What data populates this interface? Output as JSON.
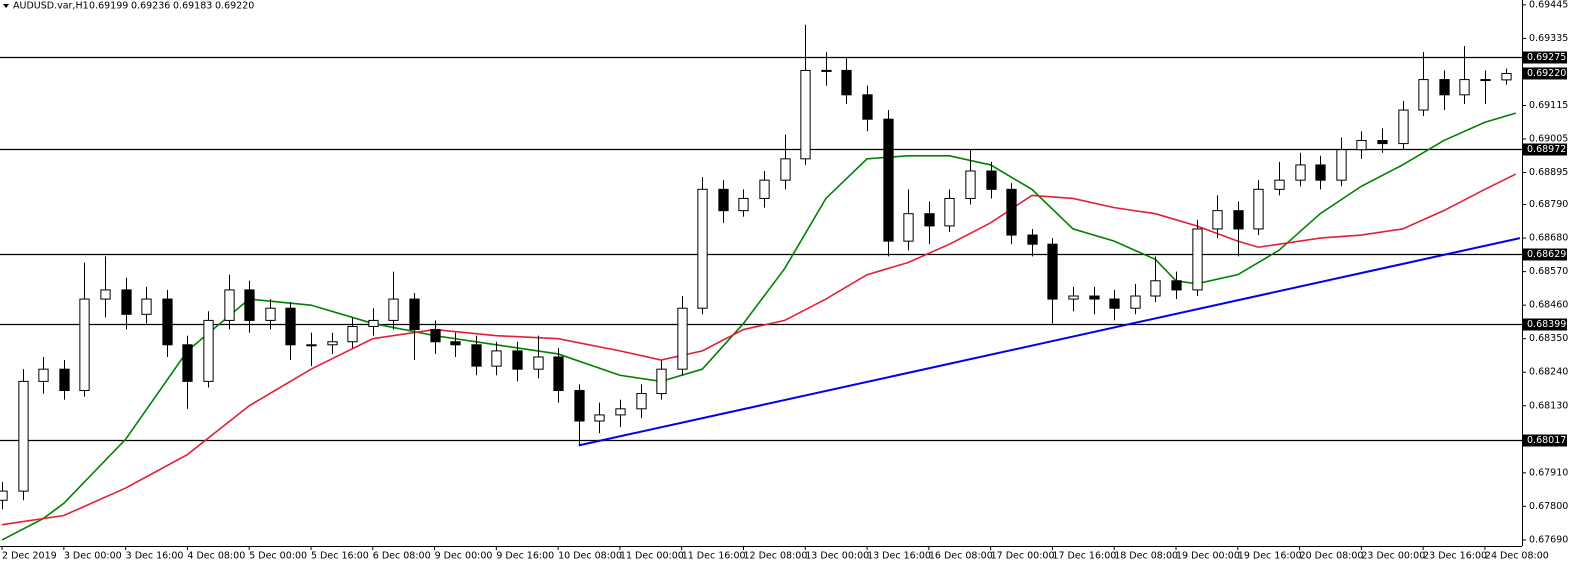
{
  "chart_data": {
    "type": "candlestick",
    "header": {
      "symbol": "AUDUSD.var,H1",
      "ohlc": [
        "0.69199",
        "0.69236",
        "0.69183",
        "0.69220"
      ]
    },
    "categories": [
      "2 Dec 2019",
      null,
      null,
      "3 Dec 00:00",
      null,
      null,
      "3 Dec 16:00",
      null,
      null,
      "4 Dec 08:00",
      null,
      null,
      "5 Dec 00:00",
      null,
      null,
      "5 Dec 16:00",
      null,
      null,
      "6 Dec 08:00",
      null,
      null,
      "9 Dec 00:00",
      null,
      null,
      "9 Dec 16:00",
      null,
      null,
      "10 Dec 08:00",
      null,
      null,
      "11 Dec 00:00",
      null,
      null,
      "11 Dec 16:00",
      null,
      null,
      "12 Dec 08:00",
      null,
      null,
      "13 Dec 00:00",
      null,
      null,
      "13 Dec 16:00",
      null,
      null,
      "16 Dec 08:00",
      null,
      null,
      "17 Dec 00:00",
      null,
      null,
      "17 Dec 16:00",
      null,
      null,
      "18 Dec 08:00",
      null,
      null,
      "19 Dec 00:00",
      null,
      null,
      "19 Dec 16:00",
      null,
      null,
      "20 Dec 08:00",
      null,
      null,
      "23 Dec 00:00",
      null,
      null,
      "23 Dec 16:00",
      null,
      null,
      "24 Dec 08:00",
      null
    ],
    "open": [
      0.6782,
      0.6785,
      0.6821,
      0.6825,
      0.6818,
      0.6848,
      0.6851,
      0.6843,
      0.6848,
      0.6833,
      0.6821,
      0.6841,
      0.6851,
      0.6841,
      0.6845,
      0.6833,
      0.6833,
      0.6834,
      0.6839,
      0.6841,
      0.6848,
      0.6838,
      0.6834,
      0.6833,
      0.6826,
      0.6831,
      0.6825,
      0.6829,
      0.6818,
      0.6808,
      0.681,
      0.6812,
      0.6817,
      0.6825,
      0.6845,
      0.6884,
      0.6877,
      0.6881,
      0.6887,
      0.6894,
      0.6923,
      0.6923,
      0.6915,
      0.6907,
      0.6867,
      0.6876,
      0.6872,
      0.6881,
      0.689,
      0.6884,
      0.6869,
      0.6866,
      0.6848,
      0.6849,
      0.6848,
      0.6845,
      0.6849,
      0.6854,
      0.6851,
      0.6871,
      0.6877,
      0.6871,
      0.6884,
      0.6887,
      0.6892,
      0.6887,
      0.6897,
      0.69,
      0.6899,
      0.691,
      0.692,
      0.6915,
      0.692,
      0.69199
    ],
    "high": [
      0.6788,
      0.6825,
      0.6829,
      0.6828,
      0.686,
      0.6862,
      0.6855,
      0.6852,
      0.6851,
      0.6836,
      0.6844,
      0.6856,
      0.6854,
      0.6848,
      0.6847,
      0.6837,
      0.6837,
      0.6842,
      0.6845,
      0.6857,
      0.685,
      0.6841,
      0.6837,
      0.6836,
      0.6834,
      0.6834,
      0.6836,
      0.6832,
      0.682,
      0.6814,
      0.6815,
      0.682,
      0.6828,
      0.6849,
      0.6888,
      0.6887,
      0.6884,
      0.689,
      0.6902,
      0.6938,
      0.6929,
      0.6927,
      0.6918,
      0.691,
      0.6884,
      0.688,
      0.6884,
      0.6897,
      0.6893,
      0.6886,
      0.6871,
      0.6868,
      0.6852,
      0.6852,
      0.6851,
      0.6853,
      0.6862,
      0.6857,
      0.6874,
      0.6882,
      0.688,
      0.6887,
      0.6893,
      0.6896,
      0.6895,
      0.6901,
      0.6903,
      0.6904,
      0.6913,
      0.6929,
      0.6923,
      0.6931,
      0.6923,
      0.69236
    ],
    "low": [
      0.6779,
      0.6782,
      0.6817,
      0.6815,
      0.6816,
      0.6842,
      0.6838,
      0.684,
      0.6829,
      0.6812,
      0.6819,
      0.6838,
      0.6837,
      0.6838,
      0.6828,
      0.6826,
      0.683,
      0.6832,
      0.6836,
      0.6838,
      0.6828,
      0.683,
      0.6829,
      0.6823,
      0.6823,
      0.6821,
      0.6822,
      0.6814,
      0.68,
      0.6804,
      0.6806,
      0.6809,
      0.6815,
      0.6823,
      0.6843,
      0.6873,
      0.6875,
      0.6878,
      0.6884,
      0.6892,
      0.6918,
      0.6912,
      0.6903,
      0.6862,
      0.6864,
      0.6866,
      0.687,
      0.6879,
      0.6881,
      0.6866,
      0.6862,
      0.684,
      0.6844,
      0.6843,
      0.6841,
      0.6843,
      0.6847,
      0.6848,
      0.6849,
      0.6868,
      0.6862,
      0.6869,
      0.6882,
      0.6885,
      0.6884,
      0.6885,
      0.6894,
      0.6896,
      0.6897,
      0.6908,
      0.691,
      0.6912,
      0.6912,
      0.69183
    ],
    "close": [
      0.6785,
      0.6821,
      0.6825,
      0.6818,
      0.6848,
      0.6851,
      0.6843,
      0.6848,
      0.6833,
      0.6821,
      0.6841,
      0.6851,
      0.6841,
      0.6845,
      0.6833,
      0.6833,
      0.6834,
      0.6839,
      0.6841,
      0.6848,
      0.6838,
      0.6834,
      0.6833,
      0.6826,
      0.6831,
      0.6825,
      0.6829,
      0.6818,
      0.6808,
      0.681,
      0.6812,
      0.6817,
      0.6825,
      0.6845,
      0.6884,
      0.6877,
      0.6881,
      0.6887,
      0.6894,
      0.6923,
      0.6923,
      0.6915,
      0.6907,
      0.6867,
      0.6876,
      0.6872,
      0.6881,
      0.689,
      0.6884,
      0.6869,
      0.6866,
      0.6848,
      0.6849,
      0.6848,
      0.6845,
      0.6849,
      0.6854,
      0.6851,
      0.6871,
      0.6877,
      0.6871,
      0.6884,
      0.6887,
      0.6892,
      0.6887,
      0.6897,
      0.69,
      0.6899,
      0.691,
      0.692,
      0.6915,
      0.692,
      0.69199,
      0.6922
    ],
    "moving_averages": [
      {
        "color": "#008000",
        "x": [
          0,
          2,
          3,
          6,
          9,
          12,
          15,
          18,
          21,
          24,
          27,
          30,
          32,
          34,
          36,
          38,
          40,
          42,
          44,
          46,
          48,
          50,
          52,
          54,
          56,
          57,
          58,
          60,
          62,
          64,
          66,
          68,
          70,
          72,
          73.5
        ],
        "values": [
          0.6769,
          0.6776,
          0.6781,
          0.6802,
          0.6831,
          0.6848,
          0.6846,
          0.684,
          0.6836,
          0.6833,
          0.683,
          0.6823,
          0.6821,
          0.6825,
          0.684,
          0.6858,
          0.6881,
          0.6894,
          0.6895,
          0.6895,
          0.6892,
          0.6884,
          0.6871,
          0.6867,
          0.6861,
          0.6854,
          0.6853,
          0.6856,
          0.6864,
          0.6876,
          0.6885,
          0.6892,
          0.69,
          0.6906,
          0.6909
        ]
      },
      {
        "color": "#e0203a",
        "x": [
          0,
          3,
          6,
          9,
          12,
          15,
          18,
          21,
          24,
          27,
          30,
          32,
          34,
          36,
          38,
          40,
          42,
          44,
          46,
          48,
          50,
          52,
          54,
          56,
          58,
          60,
          61,
          64,
          66,
          68,
          70,
          72,
          73.5
        ],
        "values": [
          0.6774,
          0.6777,
          0.6786,
          0.6797,
          0.6813,
          0.6825,
          0.6835,
          0.6838,
          0.6836,
          0.6835,
          0.6831,
          0.6828,
          0.6831,
          0.6838,
          0.6841,
          0.6848,
          0.6856,
          0.686,
          0.6866,
          0.6873,
          0.6882,
          0.6881,
          0.6878,
          0.6876,
          0.6872,
          0.6867,
          0.6865,
          0.6868,
          0.6869,
          0.6871,
          0.6877,
          0.6884,
          0.6889
        ]
      }
    ],
    "trendline": {
      "color": "#0000ee",
      "x": [
        28,
        73.7
      ],
      "values": [
        0.68,
        0.6868
      ]
    },
    "levels": [
      0.69275,
      0.68972,
      0.68629,
      0.68399,
      0.68017
    ],
    "current_price": {
      "value": 0.6922,
      "label": "0.69220"
    },
    "xlim": [
      -0.1,
      73.8
    ],
    "ylim": [
      0.6767,
      0.69461
    ],
    "yticks": [
      0.69445,
      0.69335,
      0.69115,
      0.69005,
      0.68895,
      {
        "value": 0.6879,
        "label": "0.68790"
      },
      {
        "value": 0.6868,
        "label": "0.68680"
      },
      {
        "value": 0.6857,
        "label": "0.68570"
      },
      {
        "value": 0.6846,
        "label": "0.68460"
      },
      {
        "value": 0.6835,
        "label": "0.68350"
      },
      {
        "value": 0.6824,
        "label": "0.68240"
      },
      {
        "value": 0.6813,
        "label": "0.68130"
      },
      {
        "value": 0.6791,
        "label": "0.67910"
      },
      {
        "value": 0.678,
        "label": "0.67800"
      },
      {
        "value": 0.6769,
        "label": "0.67690"
      }
    ]
  }
}
